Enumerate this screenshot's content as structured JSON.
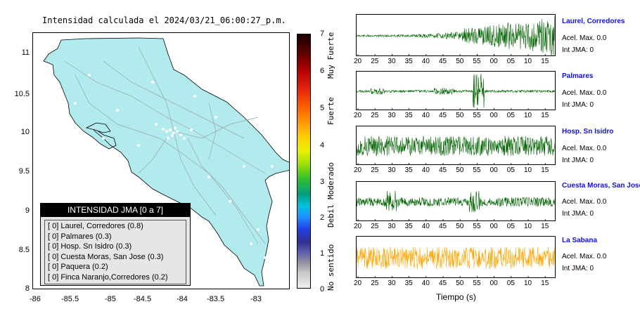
{
  "map": {
    "title": "Intensidad calculada el 2024/03/21_06:00:27_p.m.",
    "x_ticks": [
      "-86",
      "-85.5",
      "-85",
      "-84.5",
      "-84",
      "-83.5",
      "-83"
    ],
    "y_ticks": [
      "11",
      "10.5",
      "10",
      "9.5",
      "9",
      "8.5",
      "8"
    ],
    "land_color": "#b2ebee",
    "legend": {
      "title": "INTENSIDAD JMA [0 a 7]",
      "rows": [
        "[ 0]  Laurel, Corredores (0.8)",
        "[ 0]  Palmares (0.3)",
        "[ 0]  Hosp. Sn Isidro (0.3)",
        "[ 0]  Cuesta Moras, San Jose (0.3)",
        "[ 0]  Paquera (0.2)",
        "[ 0]  Finca Naranjo,Corredores (0.2)"
      ]
    }
  },
  "colorbar": {
    "ticks": [
      "7",
      "6",
      "5",
      "4",
      "3",
      "2",
      "1",
      "0"
    ],
    "words": [
      "Muy Fuerte",
      "Fuerte",
      "Moderado",
      "Debil",
      "No sentido"
    ]
  },
  "seismograms": {
    "x_ticks": [
      "20",
      "25",
      "30",
      "35",
      "40",
      "45",
      "50",
      "55",
      "00",
      "05",
      "10",
      "15"
    ],
    "xlabel": "Tiempo (s)",
    "stations": [
      {
        "name": "Laurel, Corredores",
        "acel": "Acel. Max. 0.0",
        "int": "Int JMA: 0",
        "color": "#006400"
      },
      {
        "name": "Palmares",
        "acel": "Acel. Max. 0.0",
        "int": "Int JMA: 0",
        "color": "#006400"
      },
      {
        "name": "Hosp. Sn Isidro",
        "acel": "Acel. Max. 0.0",
        "int": "Int JMA: 0",
        "color": "#006400"
      },
      {
        "name": "Cuesta Moras, San Jose",
        "acel": "Acel. Max. 0.0",
        "int": "Int JMA: 0",
        "color": "#006400"
      },
      {
        "name": "La Sabana",
        "acel": "Acel. Max. 0.0",
        "int": "Int JMA: 0",
        "color": "#ffa500"
      }
    ]
  }
}
